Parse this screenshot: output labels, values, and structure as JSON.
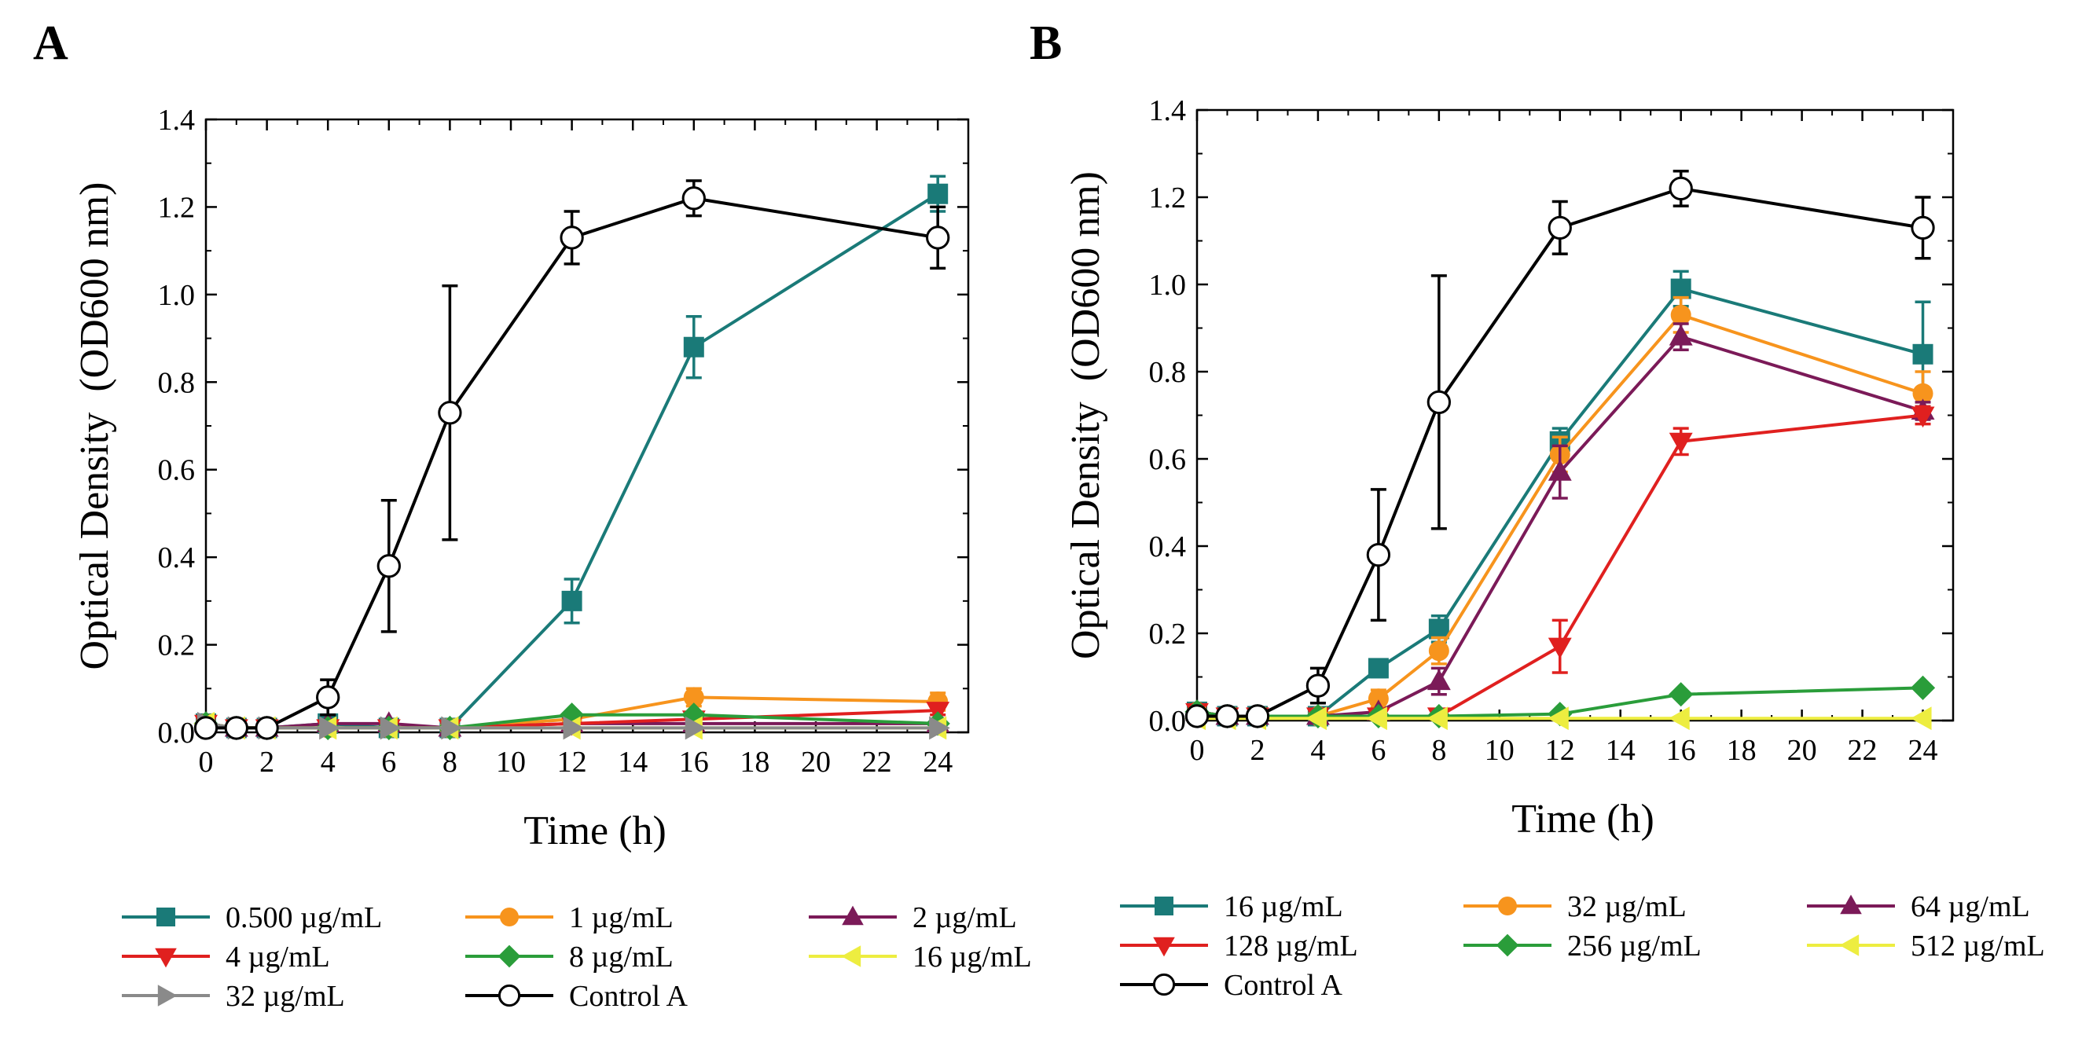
{
  "chart_data": [
    {
      "panel": "A",
      "type": "line",
      "xlabel": "Time (h)",
      "ylabel": "Optical Density  (OD600 nm)",
      "xlim": [
        0,
        25
      ],
      "ylim": [
        0,
        1.4
      ],
      "xticks": [
        "0",
        "2",
        "4",
        "6",
        "8",
        "10",
        "12",
        "14",
        "16",
        "18",
        "20",
        "22",
        "24"
      ],
      "yticks": [
        "0.0",
        "0.2",
        "0.4",
        "0.6",
        "0.8",
        "1.0",
        "1.2",
        "1.4"
      ],
      "legend": {
        "position": "bottom",
        "columns": 3
      },
      "series": [
        {
          "name": "0.500 µg/mL",
          "color": "#1a7a78",
          "marker": "square",
          "x": [
            0,
            1,
            2,
            4,
            6,
            8,
            12,
            16,
            24
          ],
          "y": [
            0.02,
            0.01,
            0.01,
            0.02,
            0.01,
            0.01,
            0.3,
            0.88,
            1.23
          ],
          "err": [
            0,
            0,
            0,
            0,
            0,
            0,
            0.05,
            0.07,
            0.04
          ]
        },
        {
          "name": "1 µg/mL",
          "color": "#f7941d",
          "marker": "circle",
          "x": [
            0,
            1,
            2,
            4,
            6,
            8,
            12,
            16,
            24
          ],
          "y": [
            0.02,
            0.01,
            0.01,
            0.01,
            0.01,
            0.01,
            0.03,
            0.08,
            0.07
          ],
          "err": [
            0,
            0,
            0,
            0,
            0,
            0,
            0,
            0.02,
            0.02
          ]
        },
        {
          "name": "2 µg/mL",
          "color": "#7b1a58",
          "marker": "triangle-up",
          "x": [
            0,
            1,
            2,
            4,
            6,
            8,
            12,
            16,
            24
          ],
          "y": [
            0.02,
            0.01,
            0.01,
            0.02,
            0.02,
            0.01,
            0.02,
            0.02,
            0.02
          ],
          "err": [
            0,
            0,
            0,
            0,
            0,
            0,
            0,
            0,
            0
          ]
        },
        {
          "name": "4 µg/mL",
          "color": "#e0201f",
          "marker": "triangle-down",
          "x": [
            0,
            1,
            2,
            4,
            6,
            8,
            12,
            16,
            24
          ],
          "y": [
            0.02,
            0.01,
            0.01,
            0.01,
            0.01,
            0.01,
            0.02,
            0.03,
            0.05
          ],
          "err": [
            0,
            0,
            0,
            0,
            0,
            0,
            0,
            0,
            0.01
          ]
        },
        {
          "name": "8 µg/mL",
          "color": "#2a9d3a",
          "marker": "diamond",
          "x": [
            0,
            1,
            2,
            4,
            6,
            8,
            12,
            16,
            24
          ],
          "y": [
            0.02,
            0.01,
            0.01,
            0.01,
            0.01,
            0.01,
            0.04,
            0.04,
            0.02
          ],
          "err": [
            0,
            0,
            0,
            0,
            0,
            0,
            0,
            0,
            0
          ]
        },
        {
          "name": "16 µg/mL",
          "color": "#eded40",
          "marker": "triangle-left",
          "x": [
            0,
            1,
            2,
            4,
            6,
            8,
            12,
            16,
            24
          ],
          "y": [
            0.02,
            0.01,
            0.01,
            0.01,
            0.01,
            0.01,
            0.01,
            0.01,
            0.01
          ],
          "err": [
            0,
            0,
            0,
            0,
            0,
            0,
            0,
            0,
            0
          ]
        },
        {
          "name": "32 µg/mL",
          "color": "#8a8a8a",
          "marker": "triangle-right",
          "x": [
            0,
            1,
            2,
            4,
            6,
            8,
            12,
            16,
            24
          ],
          "y": [
            0.02,
            0.01,
            0.01,
            0.01,
            0.01,
            0.01,
            0.01,
            0.01,
            0.01
          ],
          "err": [
            0,
            0,
            0,
            0,
            0,
            0,
            0,
            0,
            0
          ]
        },
        {
          "name": "Control A",
          "color": "#000000",
          "marker": "circle-open",
          "x": [
            0,
            1,
            2,
            4,
            6,
            8,
            12,
            16,
            24
          ],
          "y": [
            0.01,
            0.01,
            0.01,
            0.08,
            0.38,
            0.73,
            1.13,
            1.22,
            1.13
          ],
          "err": [
            0,
            0,
            0,
            0.04,
            0.15,
            0.29,
            0.06,
            0.04,
            0.07
          ]
        }
      ]
    },
    {
      "panel": "B",
      "type": "line",
      "xlabel": "Time (h)",
      "ylabel": "Optical Density  (OD600 nm)",
      "xlim": [
        0,
        25
      ],
      "ylim": [
        0,
        1.4
      ],
      "xticks": [
        "0",
        "2",
        "4",
        "6",
        "8",
        "10",
        "12",
        "14",
        "16",
        "18",
        "20",
        "22",
        "24"
      ],
      "yticks": [
        "0.0",
        "0.2",
        "0.4",
        "0.6",
        "0.8",
        "1.0",
        "1.2",
        "1.4"
      ],
      "legend": {
        "position": "bottom",
        "columns": 3
      },
      "series": [
        {
          "name": "16 µg/mL",
          "color": "#1a7a78",
          "marker": "square",
          "x": [
            0,
            1,
            2,
            4,
            6,
            8,
            12,
            16,
            24
          ],
          "y": [
            0.02,
            0.01,
            0.01,
            0.01,
            0.12,
            0.21,
            0.64,
            0.99,
            0.84
          ],
          "err": [
            0,
            0,
            0,
            0,
            0.02,
            0.03,
            0.03,
            0.04,
            0.12
          ]
        },
        {
          "name": "32 µg/mL",
          "color": "#f7941d",
          "marker": "circle",
          "x": [
            0,
            1,
            2,
            4,
            6,
            8,
            12,
            16,
            24
          ],
          "y": [
            0.02,
            0.01,
            0.01,
            0.01,
            0.05,
            0.16,
            0.61,
            0.93,
            0.75
          ],
          "err": [
            0,
            0,
            0,
            0,
            0.02,
            0.03,
            0.04,
            0.04,
            0.05
          ]
        },
        {
          "name": "64 µg/mL",
          "color": "#7b1a58",
          "marker": "triangle-up",
          "x": [
            0,
            1,
            2,
            4,
            6,
            8,
            12,
            16,
            24
          ],
          "y": [
            0.02,
            0.01,
            0.01,
            0.01,
            0.02,
            0.09,
            0.57,
            0.88,
            0.71
          ],
          "err": [
            0,
            0,
            0,
            0,
            0,
            0.03,
            0.06,
            0.03,
            0.02
          ]
        },
        {
          "name": "128 µg/mL",
          "color": "#e0201f",
          "marker": "triangle-down",
          "x": [
            0,
            1,
            2,
            4,
            6,
            8,
            12,
            16,
            24
          ],
          "y": [
            0.02,
            0.01,
            0.01,
            0.01,
            0.01,
            0.01,
            0.17,
            0.64,
            0.7
          ],
          "err": [
            0,
            0,
            0,
            0,
            0,
            0,
            0.06,
            0.03,
            0.02
          ]
        },
        {
          "name": "256 µg/mL",
          "color": "#2a9d3a",
          "marker": "diamond",
          "x": [
            0,
            1,
            2,
            4,
            6,
            8,
            12,
            16,
            24
          ],
          "y": [
            0.02,
            0.01,
            0.01,
            0.01,
            0.01,
            0.01,
            0.015,
            0.06,
            0.075
          ],
          "err": [
            0,
            0,
            0,
            0,
            0,
            0,
            0,
            0,
            0
          ]
        },
        {
          "name": "512 µg/mL",
          "color": "#eded40",
          "marker": "triangle-left",
          "x": [
            0,
            1,
            2,
            4,
            6,
            8,
            12,
            16,
            24
          ],
          "y": [
            0.005,
            0.005,
            0.005,
            0.005,
            0.005,
            0.005,
            0.005,
            0.005,
            0.005
          ],
          "err": [
            0,
            0,
            0,
            0,
            0,
            0,
            0,
            0,
            0
          ]
        },
        {
          "name": "Control A",
          "color": "#000000",
          "marker": "circle-open",
          "x": [
            0,
            1,
            2,
            4,
            6,
            8,
            12,
            16,
            24
          ],
          "y": [
            0.01,
            0.01,
            0.01,
            0.08,
            0.38,
            0.73,
            1.13,
            1.22,
            1.13
          ],
          "err": [
            0,
            0,
            0,
            0.04,
            0.15,
            0.29,
            0.06,
            0.04,
            0.07
          ]
        }
      ]
    }
  ]
}
